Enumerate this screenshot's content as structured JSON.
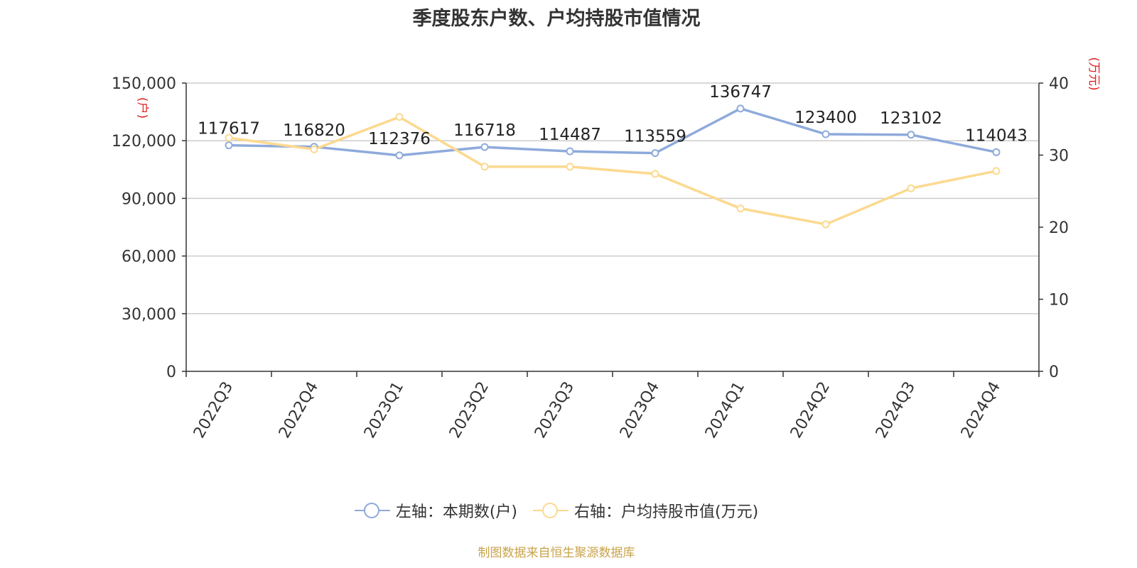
{
  "chart_data": {
    "type": "line",
    "title": "季度股东户数、户均持股市值情况",
    "categories": [
      "2022Q3",
      "2022Q4",
      "2023Q1",
      "2023Q2",
      "2023Q3",
      "2023Q4",
      "2024Q1",
      "2024Q2",
      "2024Q3",
      "2024Q4"
    ],
    "left_axis": {
      "unit_label": "(户)",
      "ylim": [
        0,
        150000
      ],
      "ticks": [
        "0",
        "30,000",
        "60,000",
        "90,000",
        "120,000",
        "150,000"
      ],
      "tick_values": [
        0,
        30000,
        60000,
        90000,
        120000,
        150000
      ]
    },
    "right_axis": {
      "unit_label": "(万元)",
      "ylim": [
        0,
        40
      ],
      "ticks": [
        "0",
        "10",
        "20",
        "30",
        "40"
      ],
      "tick_values": [
        0,
        10,
        20,
        30,
        40
      ]
    },
    "series": [
      {
        "name": "左轴：本期数(户)",
        "axis": "left",
        "color": "#8eaadb",
        "values": [
          117617,
          116820,
          112376,
          116718,
          114487,
          113559,
          136747,
          123400,
          123102,
          114043
        ],
        "labels": [
          "117617",
          "116820",
          "112376",
          "116718",
          "114487",
          "113559",
          "136747",
          "123400",
          "123102",
          "114043"
        ]
      },
      {
        "name": "右轴：户均持股市值(万元)",
        "axis": "right",
        "color": "#fcd98f",
        "values": [
          32.4,
          30.8,
          35.3,
          28.4,
          28.4,
          27.4,
          22.6,
          20.4,
          25.4,
          27.8
        ]
      }
    ],
    "grid": true,
    "legend_position": "bottom-center"
  },
  "source": "制图数据来自恒生聚源数据库"
}
